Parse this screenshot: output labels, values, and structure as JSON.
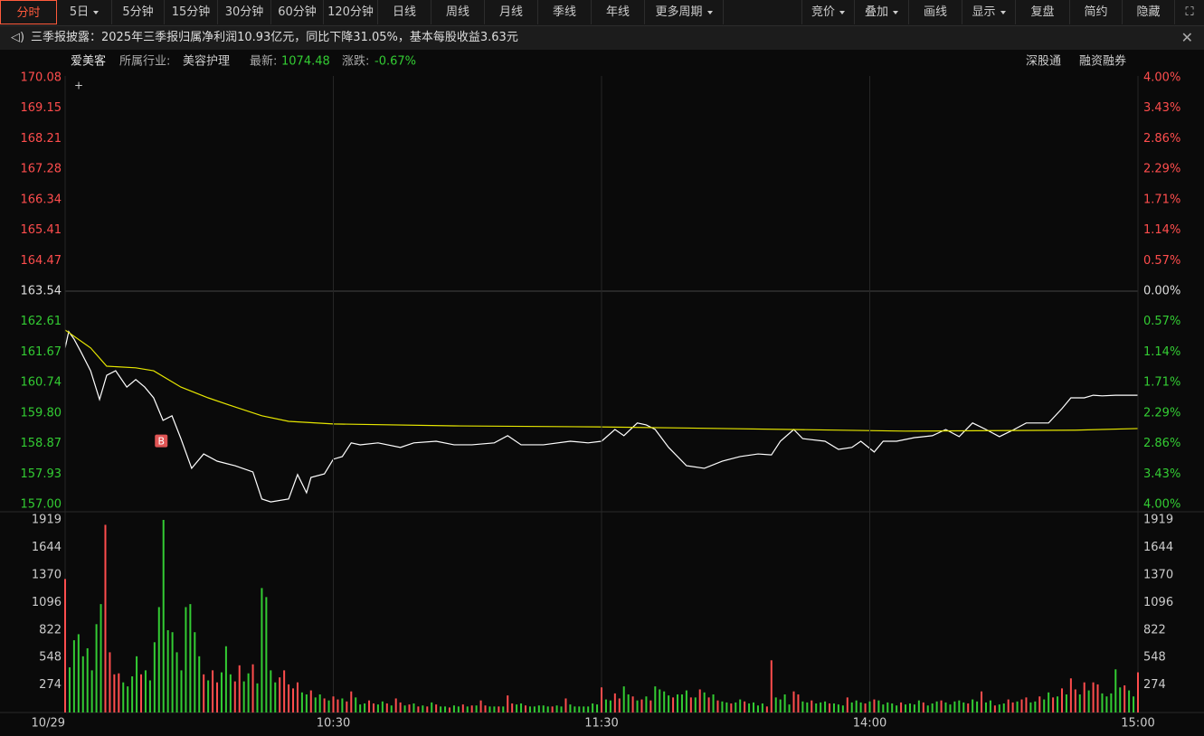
{
  "toolbar": {
    "periods": [
      "分时",
      "5日",
      "5分钟",
      "15分钟",
      "30分钟",
      "60分钟",
      "120分钟",
      "日线",
      "周线",
      "月线",
      "季线",
      "年线",
      "更多周期"
    ],
    "tools": [
      "竞价",
      "叠加",
      "画线",
      "显示",
      "复盘",
      "简约",
      "隐藏"
    ]
  },
  "notice": "三季报披露：2025年三季报归属净利润10.93亿元，同比下降31.05%，基本每股收益3.63元",
  "info": {
    "name": "爱美客",
    "industry_label": "所属行业:",
    "industry": "美容护理",
    "last_label": "最新:",
    "last": "1074.48",
    "change_label": "涨跌:",
    "change": "-0.67%",
    "links": [
      "深股通",
      "融资融券"
    ]
  },
  "chart_data": [
    {
      "type": "line",
      "xlim": [
        0,
        240
      ],
      "ylim": [
        157,
        170.08
      ],
      "yticks": [
        170.08,
        169.15,
        168.21,
        167.28,
        166.34,
        165.41,
        164.47,
        163.54,
        162.61,
        161.67,
        160.74,
        {
          "value": 159.8,
          "label": "159.80"
        },
        158.87,
        157.93,
        {
          "value": 157,
          "label": "157.00"
        }
      ],
      "y2lim": [
        -4,
        4
      ],
      "y2ticks": [
        {
          "value": 4,
          "label": "4.00%"
        },
        {
          "value": 3.43,
          "label": "3.43%"
        },
        {
          "value": 2.86,
          "label": "2.86%"
        },
        {
          "value": 2.29,
          "label": "2.29%"
        },
        {
          "value": 1.71,
          "label": "1.71%"
        },
        {
          "value": 1.14,
          "label": "1.14%"
        },
        {
          "value": 0.57,
          "label": "0.57%"
        },
        {
          "value": 0,
          "label": "0.00%"
        },
        {
          "value": -0.57,
          "label": "0.57%"
        },
        {
          "value": -1.14,
          "label": "1.14%"
        },
        {
          "value": -1.71,
          "label": "1.71%"
        },
        {
          "value": -2.29,
          "label": "2.29%"
        },
        {
          "value": -2.86,
          "label": "2.86%"
        },
        {
          "value": -3.43,
          "label": "3.43%"
        },
        {
          "value": -4,
          "label": "4.00%"
        }
      ],
      "up_color": "#ff4d4d",
      "down_color": "#33cc33",
      "series": [
        {
          "color": "#ffffff",
          "x": [
            0,
            0.8,
            2,
            3.6,
            5.7,
            7.7,
            9.3,
            11.3,
            13.8,
            15.8,
            17.8,
            19.8,
            21.9,
            23.9,
            25.9,
            28.3,
            31,
            34,
            38,
            42,
            44,
            46,
            50,
            52,
            54,
            55,
            58,
            60,
            62,
            64,
            66,
            70,
            75,
            78,
            83,
            87,
            91,
            96,
            99,
            102,
            107,
            113,
            117,
            120,
            123,
            125,
            128,
            130,
            132,
            135,
            139,
            143,
            147,
            151,
            155,
            158,
            160,
            163,
            165,
            170,
            173,
            176,
            178,
            181,
            183,
            186,
            190,
            194,
            197,
            200,
            203,
            206,
            209,
            212,
            215,
            220,
            223,
            225,
            228,
            230,
            232,
            235,
            240
          ],
          "values": [
            161.8,
            162.3,
            162.07,
            161.66,
            161.1,
            160.22,
            160.96,
            161.1,
            160.6,
            160.83,
            160.6,
            160.27,
            159.58,
            159.72,
            159.02,
            158.11,
            158.55,
            158.33,
            158.19,
            158.0,
            157.17,
            157.08,
            157.17,
            157.92,
            157.36,
            157.83,
            157.94,
            158.39,
            158.47,
            158.89,
            158.83,
            158.89,
            158.75,
            158.89,
            158.94,
            158.83,
            158.83,
            158.89,
            159.11,
            158.83,
            158.83,
            158.94,
            158.89,
            158.94,
            159.3,
            159.11,
            159.5,
            159.44,
            159.3,
            158.75,
            158.19,
            158.11,
            158.33,
            158.47,
            158.55,
            158.52,
            158.94,
            159.3,
            159.02,
            158.94,
            158.69,
            158.75,
            158.94,
            158.61,
            158.94,
            158.94,
            159.05,
            159.11,
            159.3,
            159.08,
            159.5,
            159.3,
            159.08,
            159.28,
            159.5,
            159.5,
            159.94,
            160.27,
            160.27,
            160.35,
            160.33,
            160.35,
            160.35
          ]
        },
        {
          "color": "#e6e600",
          "x": [
            0,
            5.7,
            9.3,
            15.8,
            19.8,
            25.9,
            32,
            38,
            44,
            50,
            60,
            87,
            119,
            147,
            188,
            226,
            240
          ],
          "values": [
            162.35,
            161.8,
            161.24,
            161.19,
            161.1,
            160.6,
            160.27,
            159.99,
            159.72,
            159.55,
            159.47,
            159.41,
            159.38,
            159.33,
            159.25,
            159.28,
            159.33
          ]
        }
      ],
      "annotations": [
        {
          "x": 21.5,
          "y": 158.95,
          "label": "B"
        }
      ]
    },
    {
      "type": "bar",
      "xlim": [
        0,
        240
      ],
      "ylim": [
        0,
        1919
      ],
      "yticks": [
        1919,
        1644,
        1370,
        1096,
        822,
        548,
        274
      ],
      "xticks": [
        {
          "value": 0,
          "label": "10/29"
        },
        {
          "value": 60,
          "label": "10:30"
        },
        {
          "value": 120,
          "label": "11:30"
        },
        {
          "value": 180,
          "label": "14:00"
        },
        {
          "value": 240,
          "label": "15:00"
        }
      ],
      "series": [
        {
          "color": "#ff4d4d",
          "values": [
            1330,
            null,
            null,
            null,
            null,
            null,
            null,
            null,
            null,
            1870,
            600,
            380,
            390,
            null,
            null,
            null,
            null,
            380,
            null,
            null,
            null,
            null,
            null,
            null,
            null,
            null,
            null,
            null,
            null,
            null,
            null,
            380,
            null,
            420,
            300,
            null,
            null,
            null,
            310,
            470,
            null,
            null,
            480,
            null,
            null,
            null,
            null,
            null,
            350,
            420,
            280,
            240,
            300,
            null,
            null,
            220,
            null,
            null,
            140,
            null,
            160,
            130,
            null,
            110,
            210,
            null,
            null,
            null,
            120,
            90,
            null,
            null,
            90,
            null,
            140,
            100,
            null,
            80,
            null,
            60,
            null,
            60,
            null,
            80,
            null,
            null,
            50,
            null,
            null,
            80,
            null,
            70,
            null,
            120,
            70,
            null,
            null,
            60,
            null,
            170,
            90,
            null,
            null,
            70,
            null,
            null,
            null,
            null,
            null,
            60,
            null,
            null,
            140,
            null,
            null,
            null,
            null,
            null,
            null,
            null,
            250,
            null,
            null,
            190,
            140,
            null,
            null,
            160,
            null,
            130,
            null,
            120,
            null,
            null,
            null,
            null,
            150,
            null,
            null,
            null,
            150,
            null,
            230,
            null,
            150,
            null,
            120,
            null,
            null,
            90,
            null,
            null,
            110,
            null,
            null,
            null,
            null,
            60,
            520,
            null,
            null,
            null,
            null,
            210,
            180,
            null,
            null,
            120,
            null,
            null,
            null,
            90,
            null,
            null,
            null,
            150,
            null,
            null,
            null,
            90,
            null,
            130,
            null,
            null,
            null,
            null,
            null,
            100,
            null,
            null,
            null,
            null,
            100,
            null,
            null,
            null,
            120,
            null,
            null,
            null,
            null,
            null,
            90,
            null,
            null,
            210,
            null,
            null,
            70,
            null,
            null,
            130,
            100,
            null,
            130,
            150,
            null,
            null,
            160,
            null,
            null,
            150,
            null,
            240,
            null,
            340,
            230,
            null,
            300,
            null,
            300,
            280,
            null,
            null,
            null,
            null,
            null,
            270,
            null,
            null,
            400
          ]
        },
        {
          "color": "#33cc33",
          "values": [
            null,
            450,
            720,
            780,
            560,
            640,
            420,
            880,
            1080,
            null,
            null,
            null,
            null,
            300,
            260,
            360,
            560,
            null,
            420,
            320,
            700,
            1050,
            1919,
            820,
            800,
            600,
            420,
            1050,
            1080,
            800,
            560,
            null,
            320,
            null,
            null,
            400,
            660,
            380,
            null,
            null,
            310,
            390,
            null,
            290,
            1240,
            1150,
            420,
            300,
            null,
            null,
            null,
            null,
            null,
            200,
            180,
            null,
            150,
            180,
            null,
            120,
            null,
            null,
            140,
            null,
            null,
            150,
            80,
            90,
            null,
            null,
            80,
            110,
            null,
            70,
            null,
            null,
            70,
            null,
            90,
            null,
            70,
            null,
            100,
            null,
            60,
            60,
            null,
            70,
            60,
            null,
            60,
            null,
            70,
            null,
            null,
            60,
            60,
            null,
            60,
            null,
            null,
            80,
            90,
            null,
            60,
            60,
            70,
            70,
            60,
            null,
            70,
            60,
            null,
            80,
            60,
            60,
            60,
            60,
            90,
            80,
            null,
            130,
            120,
            null,
            null,
            260,
            180,
            null,
            120,
            null,
            160,
            null,
            260,
            230,
            210,
            170,
            null,
            180,
            180,
            220,
            null,
            150,
            null,
            200,
            null,
            180,
            null,
            110,
            100,
            null,
            100,
            130,
            null,
            90,
            100,
            70,
            90,
            null,
            null,
            150,
            130,
            180,
            80,
            null,
            null,
            110,
            100,
            null,
            90,
            100,
            110,
            null,
            90,
            80,
            70,
            null,
            100,
            120,
            100,
            null,
            110,
            null,
            120,
            80,
            100,
            90,
            70,
            null,
            80,
            90,
            80,
            120,
            null,
            70,
            90,
            110,
            null,
            100,
            80,
            110,
            120,
            100,
            null,
            130,
            110,
            null,
            100,
            120,
            null,
            80,
            90,
            null,
            null,
            110,
            null,
            null,
            100,
            110,
            null,
            130,
            200,
            null,
            160,
            null,
            180,
            null,
            null,
            180,
            null,
            220,
            null,
            null,
            190,
            160,
            190,
            430,
            250,
            null,
            220,
            160,
            null
          ]
        }
      ]
    }
  ]
}
